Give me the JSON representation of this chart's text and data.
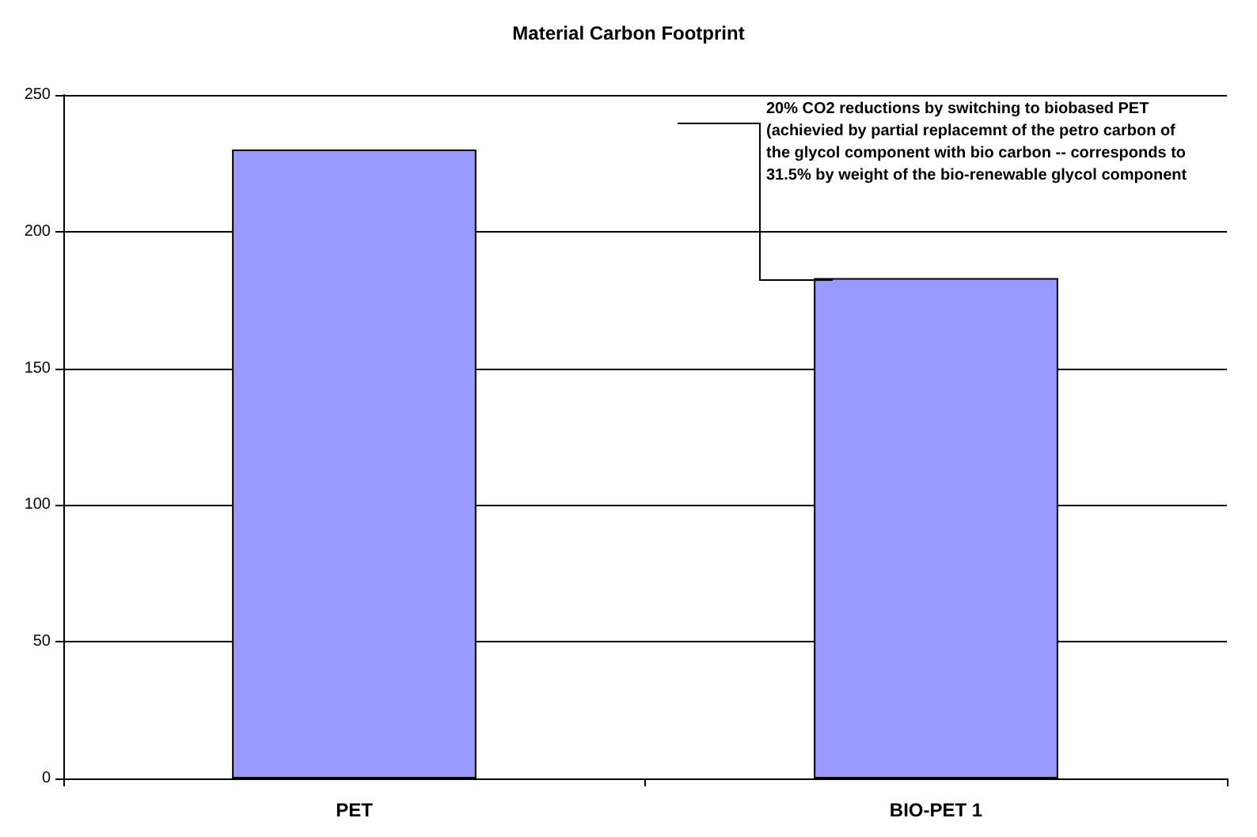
{
  "chart_data": {
    "type": "bar",
    "title": "Material Carbon Footprint",
    "categories": [
      "PET",
      "BIO-PET 1"
    ],
    "values": [
      230,
      183
    ],
    "color": "#9999ff",
    "ylim": [
      0,
      250
    ],
    "yticks": [
      0,
      50,
      100,
      150,
      200,
      250
    ],
    "grid": "y",
    "annotations": [
      "20% CO2 reductions by switching to biobased PET (achievied by partial replacemnt of the petro carbon of the glycol component with bio carbon -- corresponds to 31.5% by weight of the bio-renewable glycol component"
    ]
  }
}
